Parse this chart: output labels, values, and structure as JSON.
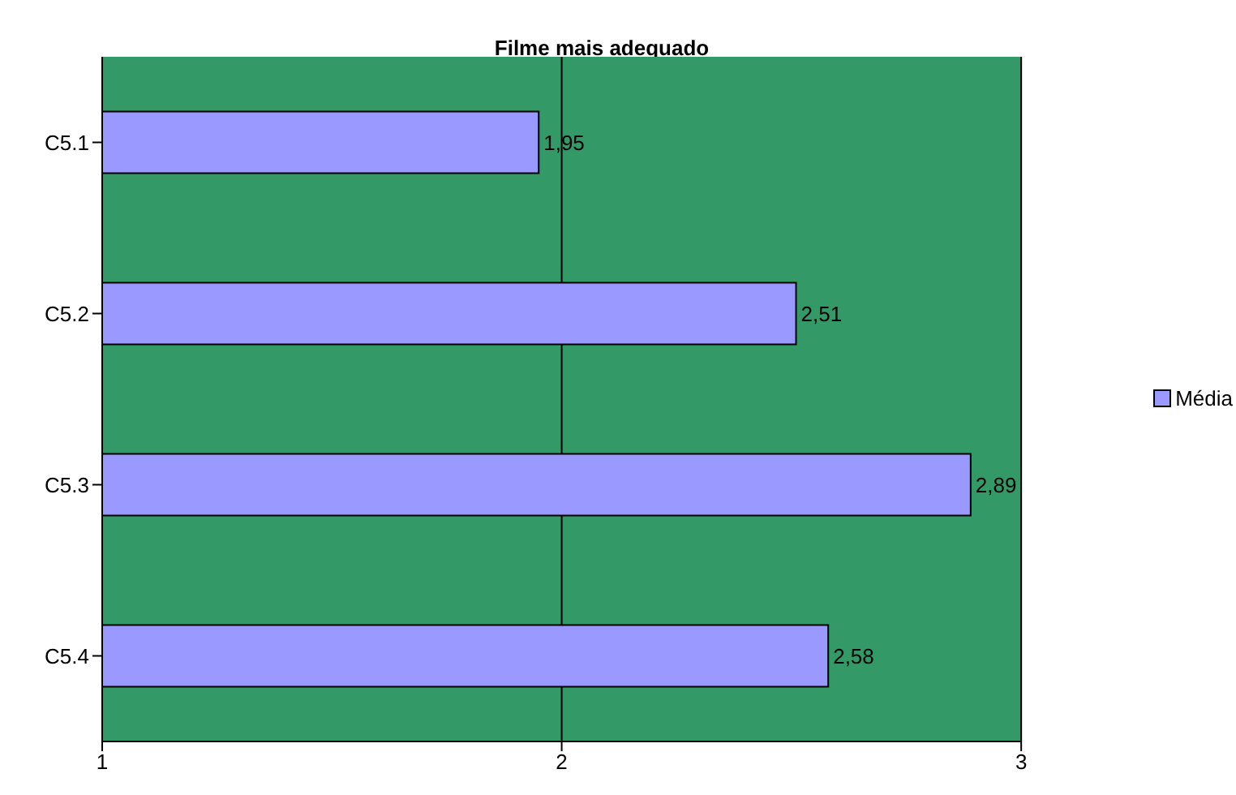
{
  "chart_data": {
    "type": "bar",
    "orientation": "horizontal",
    "title": "Filme mais adequado",
    "categories": [
      "C5.1",
      "C5.2",
      "C5.3",
      "C5.4"
    ],
    "series": [
      {
        "name": "Média",
        "color": "#9999ff",
        "values": [
          1.95,
          2.51,
          2.89,
          2.58
        ],
        "value_labels": [
          "1,95",
          "2,51",
          "2,89",
          "2,58"
        ]
      }
    ],
    "xlim": [
      1,
      3
    ],
    "xticks": [
      1,
      2,
      3
    ],
    "grid": "x",
    "legend": "right"
  }
}
